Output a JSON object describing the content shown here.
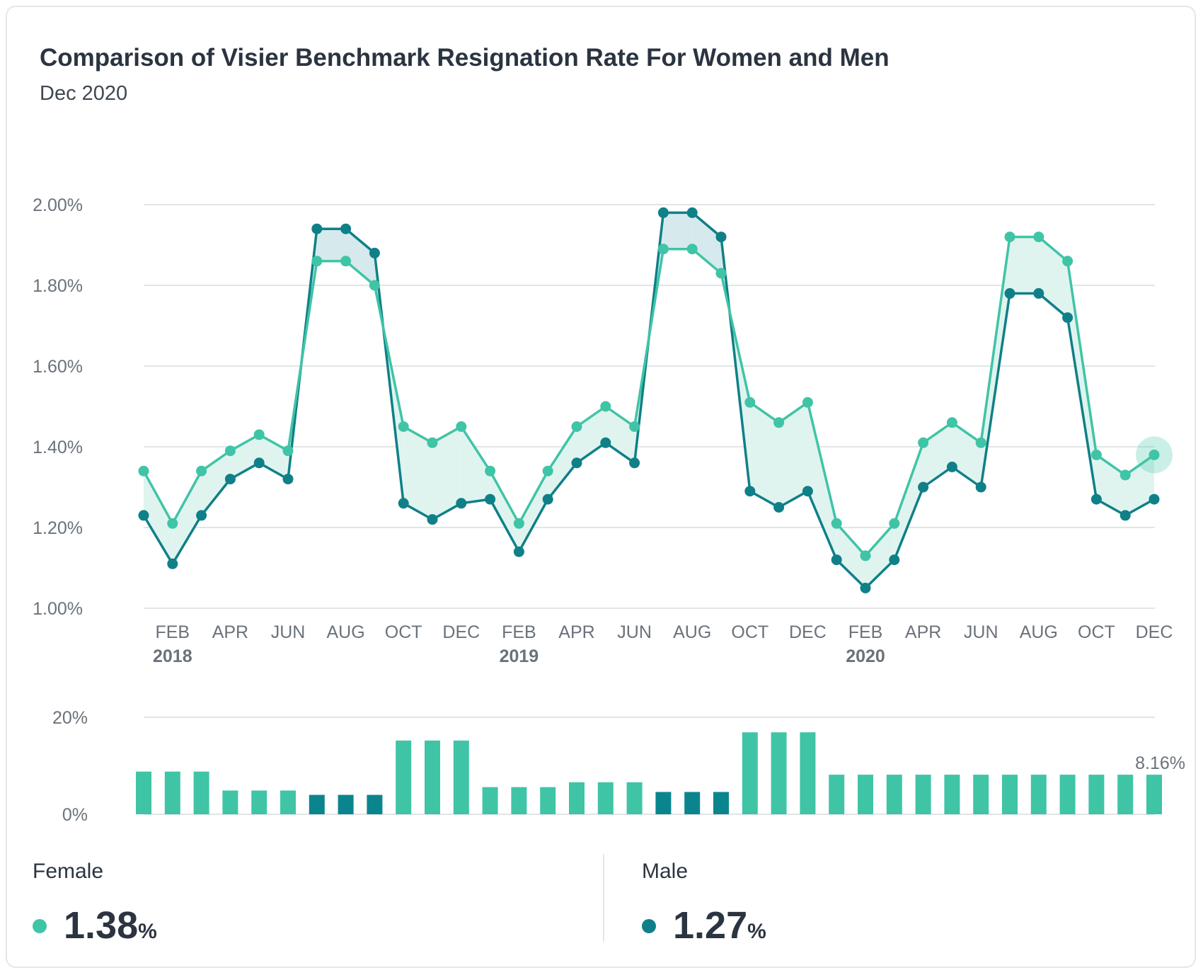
{
  "title": "Comparison of Visier Benchmark Resignation Rate For Women and Men",
  "subtitle": "Dec 2020",
  "colors": {
    "female": "#3fc4a6",
    "male": "#0f8088",
    "bar_dark": "#0b858d",
    "grid": "#e2e5e8",
    "axis_text": "#6a727b"
  },
  "chart_data": [
    {
      "type": "line",
      "x": [
        "Jan 2018",
        "Feb 2018",
        "Mar 2018",
        "Apr 2018",
        "May 2018",
        "Jun 2018",
        "Jul 2018",
        "Aug 2018",
        "Sep 2018",
        "Oct 2018",
        "Nov 2018",
        "Dec 2018",
        "Jan 2019",
        "Feb 2019",
        "Mar 2019",
        "Apr 2019",
        "May 2019",
        "Jun 2019",
        "Jul 2019",
        "Aug 2019",
        "Sep 2019",
        "Oct 2019",
        "Nov 2019",
        "Dec 2019",
        "Jan 2020",
        "Feb 2020",
        "Mar 2020",
        "Apr 2020",
        "May 2020",
        "Jun 2020",
        "Jul 2020",
        "Aug 2020",
        "Sep 2020",
        "Oct 2020",
        "Nov 2020",
        "Dec 2020"
      ],
      "xtick_labels": [
        "FEB",
        "APR",
        "JUN",
        "AUG",
        "OCT",
        "DEC",
        "FEB",
        "APR",
        "JUN",
        "AUG",
        "OCT",
        "DEC",
        "FEB",
        "APR",
        "JUN",
        "AUG",
        "OCT",
        "DEC"
      ],
      "xtick_index": [
        1,
        3,
        5,
        7,
        9,
        11,
        13,
        15,
        17,
        19,
        21,
        23,
        25,
        27,
        29,
        31,
        33,
        35
      ],
      "year_labels": [
        "2018",
        "2019",
        "2020"
      ],
      "year_index": [
        1,
        13,
        25
      ],
      "ylim": [
        1.0,
        2.0
      ],
      "yticks": [
        1.0,
        1.2,
        1.4,
        1.6,
        1.8,
        2.0
      ],
      "ytick_labels": [
        "1.00%",
        "1.20%",
        "1.40%",
        "1.60%",
        "1.80%",
        "2.00%"
      ],
      "series": [
        {
          "name": "Female",
          "values": [
            1.34,
            1.21,
            1.34,
            1.39,
            1.43,
            1.39,
            1.86,
            1.86,
            1.8,
            1.45,
            1.41,
            1.45,
            1.34,
            1.21,
            1.34,
            1.45,
            1.5,
            1.45,
            1.89,
            1.89,
            1.83,
            1.51,
            1.46,
            1.51,
            1.21,
            1.13,
            1.21,
            1.41,
            1.46,
            1.41,
            1.92,
            1.92,
            1.86,
            1.38,
            1.33,
            1.38
          ]
        },
        {
          "name": "Male",
          "values": [
            1.23,
            1.11,
            1.23,
            1.32,
            1.36,
            1.32,
            1.94,
            1.94,
            1.88,
            1.26,
            1.22,
            1.26,
            1.27,
            1.14,
            1.27,
            1.36,
            1.41,
            1.36,
            1.98,
            1.98,
            1.92,
            1.29,
            1.25,
            1.29,
            1.12,
            1.05,
            1.12,
            1.3,
            1.35,
            1.3,
            1.78,
            1.78,
            1.72,
            1.27,
            1.23,
            1.27
          ]
        }
      ]
    },
    {
      "type": "bar",
      "ylim": [
        0,
        20
      ],
      "yticks": [
        0,
        20
      ],
      "ytick_labels": [
        "0%",
        "20%"
      ],
      "values": [
        8.8,
        8.8,
        8.8,
        4.9,
        4.9,
        4.9,
        4.0,
        4.0,
        4.0,
        15.2,
        15.2,
        15.2,
        5.6,
        5.6,
        5.6,
        6.6,
        6.6,
        6.6,
        4.6,
        4.6,
        4.6,
        16.9,
        16.9,
        16.9,
        8.16,
        8.16,
        8.16,
        8.16,
        8.16,
        8.16,
        8.16,
        8.16,
        8.16,
        8.16,
        8.16,
        8.16
      ],
      "highlight": [
        false,
        false,
        false,
        false,
        false,
        false,
        true,
        true,
        true,
        false,
        false,
        false,
        false,
        false,
        false,
        false,
        false,
        false,
        true,
        true,
        true,
        false,
        false,
        false,
        false,
        false,
        false,
        false,
        false,
        false,
        false,
        false,
        false,
        false,
        false,
        false
      ],
      "last_label": "8.16%"
    }
  ],
  "legend": {
    "female": {
      "label": "Female",
      "value": "1.38",
      "unit": "%"
    },
    "male": {
      "label": "Male",
      "value": "1.27",
      "unit": "%"
    }
  }
}
